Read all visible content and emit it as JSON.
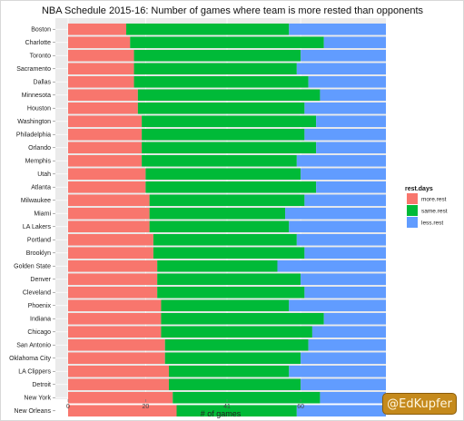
{
  "chart_data": {
    "type": "bar",
    "orientation": "horizontal",
    "stacked": true,
    "title": "NBA Schedule 2015-16: Number of games where team is more rested than opponents",
    "xlabel": "# of games",
    "ylabel": "",
    "xlim": [
      0,
      82
    ],
    "xticks": [
      0,
      20,
      41,
      60
    ],
    "grid": true,
    "legend": {
      "title": "rest.days",
      "position": "right"
    },
    "categories": [
      "Boston",
      "Charlotte",
      "Toronto",
      "Sacramento",
      "Dallas",
      "Minnesota",
      "Houston",
      "Washington",
      "Philadelphia",
      "Orlando",
      "Memphis",
      "Utah",
      "Atlanta",
      "Milwaukee",
      "Miami",
      "LA Lakers",
      "Portland",
      "Brooklyn",
      "Golden State",
      "Denver",
      "Cleveland",
      "Phoenix",
      "Indiana",
      "Chicago",
      "San Antonio",
      "Oklahoma City",
      "LA Clippers",
      "Detroit",
      "New York",
      "New Orleans"
    ],
    "series": [
      {
        "name": "more.rest",
        "color": "#f8766d",
        "values": [
          15,
          16,
          17,
          17,
          17,
          18,
          18,
          19,
          19,
          19,
          19,
          20,
          20,
          21,
          21,
          21,
          22,
          22,
          23,
          23,
          23,
          24,
          24,
          24,
          25,
          25,
          26,
          26,
          27,
          28
        ]
      },
      {
        "name": "same.rest",
        "color": "#00ba38",
        "values": [
          42,
          50,
          43,
          42,
          45,
          47,
          43,
          45,
          42,
          45,
          40,
          40,
          44,
          40,
          35,
          36,
          37,
          39,
          31,
          37,
          38,
          33,
          42,
          39,
          37,
          35,
          31,
          34,
          38,
          31
        ]
      },
      {
        "name": "less.rest",
        "color": "#619cff",
        "values": [
          25,
          16,
          22,
          23,
          20,
          17,
          21,
          18,
          21,
          18,
          23,
          22,
          18,
          21,
          26,
          25,
          23,
          21,
          28,
          22,
          21,
          25,
          16,
          19,
          20,
          22,
          25,
          22,
          17,
          23
        ]
      }
    ]
  },
  "watermark": {
    "text": "@EdKupfer"
  }
}
